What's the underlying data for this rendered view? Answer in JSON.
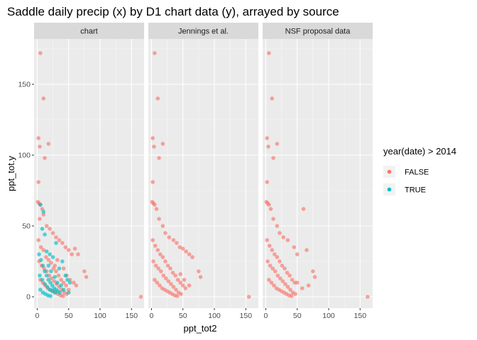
{
  "chart_data": {
    "type": "scatter",
    "title": "Saddle daily precip (x) by D1 chart data (y), arrayed by source",
    "xlabel": "ppt_tot2",
    "ylabel": "ppt_tot.y",
    "xlim": [
      -5,
      170
    ],
    "ylim": [
      -8,
      182
    ],
    "x_ticks": [
      0,
      50,
      100,
      150
    ],
    "y_ticks": [
      0,
      50,
      100,
      150
    ],
    "grid": true,
    "facets": [
      "chart",
      "Jennings et al.",
      "NSF proposal data"
    ],
    "legend": {
      "title": "year(date) > 2014",
      "position": "right",
      "entries": [
        {
          "label": "FALSE",
          "color": "#F8766D"
        },
        {
          "label": "TRUE",
          "color": "#00BFC4"
        }
      ]
    },
    "series": [
      {
        "name": "FALSE",
        "color": "#F8766D",
        "panels": [
          [
            [
              5,
              172
            ],
            [
              10,
              140
            ],
            [
              2,
              112
            ],
            [
              4,
              106
            ],
            [
              12,
              98
            ],
            [
              18,
              108
            ],
            [
              2,
              81
            ],
            [
              1,
              67
            ],
            [
              3,
              66
            ],
            [
              5,
              65
            ],
            [
              8,
              62
            ],
            [
              10,
              58
            ],
            [
              4,
              55
            ],
            [
              15,
              50
            ],
            [
              20,
              48
            ],
            [
              25,
              45
            ],
            [
              30,
              42
            ],
            [
              35,
              40
            ],
            [
              40,
              38
            ],
            [
              45,
              35
            ],
            [
              50,
              33
            ],
            [
              55,
              30
            ],
            [
              60,
              34
            ],
            [
              65,
              30
            ],
            [
              75,
              18
            ],
            [
              78,
              14
            ],
            [
              28,
              22
            ],
            [
              32,
              26
            ],
            [
              42,
              20
            ],
            [
              47,
              15
            ],
            [
              52,
              12
            ],
            [
              58,
              10
            ],
            [
              62,
              8
            ],
            [
              165,
              0
            ],
            [
              2,
              40
            ],
            [
              6,
              35
            ],
            [
              10,
              33
            ],
            [
              14,
              28
            ],
            [
              18,
              26
            ],
            [
              22,
              24
            ],
            [
              26,
              20
            ],
            [
              30,
              18
            ],
            [
              34,
              15
            ],
            [
              38,
              12
            ],
            [
              42,
              10
            ],
            [
              46,
              8
            ],
            [
              50,
              5
            ],
            [
              3,
              25
            ],
            [
              7,
              22
            ],
            [
              11,
              20
            ],
            [
              15,
              18
            ],
            [
              19,
              15
            ],
            [
              23,
              13
            ],
            [
              27,
              11
            ],
            [
              31,
              9
            ],
            [
              35,
              7
            ],
            [
              39,
              5
            ],
            [
              43,
              3
            ],
            [
              47,
              2
            ],
            [
              5,
              12
            ],
            [
              9,
              10
            ],
            [
              13,
              8
            ],
            [
              17,
              6
            ],
            [
              21,
              5
            ],
            [
              25,
              4
            ],
            [
              29,
              3
            ],
            [
              33,
              2
            ],
            [
              37,
              1
            ],
            [
              41,
              0.5
            ]
          ],
          [
            [
              5,
              172
            ],
            [
              10,
              140
            ],
            [
              2,
              112
            ],
            [
              4,
              106
            ],
            [
              12,
              98
            ],
            [
              18,
              108
            ],
            [
              2,
              81
            ],
            [
              1,
              67
            ],
            [
              3,
              66
            ],
            [
              5,
              65
            ],
            [
              8,
              62
            ],
            [
              12,
              55
            ],
            [
              18,
              50
            ],
            [
              22,
              45
            ],
            [
              28,
              42
            ],
            [
              35,
              40
            ],
            [
              40,
              38
            ],
            [
              45,
              35
            ],
            [
              50,
              34
            ],
            [
              55,
              32
            ],
            [
              60,
              30
            ],
            [
              65,
              28
            ],
            [
              75,
              18
            ],
            [
              78,
              14
            ],
            [
              60,
              8
            ],
            [
              52,
              12
            ],
            [
              46,
              16
            ],
            [
              155,
              0
            ],
            [
              2,
              40
            ],
            [
              6,
              36
            ],
            [
              10,
              33
            ],
            [
              14,
              30
            ],
            [
              18,
              28
            ],
            [
              22,
              25
            ],
            [
              26,
              22
            ],
            [
              30,
              20
            ],
            [
              34,
              17
            ],
            [
              38,
              15
            ],
            [
              42,
              12
            ],
            [
              46,
              10
            ],
            [
              50,
              8
            ],
            [
              54,
              6
            ],
            [
              3,
              25
            ],
            [
              7,
              22
            ],
            [
              11,
              20
            ],
            [
              15,
              18
            ],
            [
              19,
              15
            ],
            [
              23,
              13
            ],
            [
              27,
              11
            ],
            [
              31,
              9
            ],
            [
              35,
              7
            ],
            [
              39,
              5
            ],
            [
              43,
              3
            ],
            [
              47,
              2
            ],
            [
              5,
              12
            ],
            [
              9,
              10
            ],
            [
              13,
              8
            ],
            [
              17,
              6
            ],
            [
              21,
              5
            ],
            [
              25,
              4
            ],
            [
              29,
              3
            ],
            [
              33,
              2
            ],
            [
              37,
              1
            ],
            [
              41,
              0.5
            ]
          ],
          [
            [
              5,
              172
            ],
            [
              10,
              140
            ],
            [
              2,
              112
            ],
            [
              4,
              106
            ],
            [
              12,
              98
            ],
            [
              18,
              108
            ],
            [
              2,
              81
            ],
            [
              1,
              67
            ],
            [
              3,
              66
            ],
            [
              5,
              65
            ],
            [
              8,
              62
            ],
            [
              12,
              55
            ],
            [
              18,
              50
            ],
            [
              22,
              45
            ],
            [
              28,
              42
            ],
            [
              35,
              40
            ],
            [
              45,
              35
            ],
            [
              50,
              30
            ],
            [
              60,
              62
            ],
            [
              65,
              33
            ],
            [
              75,
              18
            ],
            [
              78,
              14
            ],
            [
              68,
              8
            ],
            [
              58,
              6
            ],
            [
              50,
              10
            ],
            [
              162,
              0
            ],
            [
              2,
              40
            ],
            [
              6,
              36
            ],
            [
              10,
              33
            ],
            [
              14,
              30
            ],
            [
              18,
              28
            ],
            [
              22,
              25
            ],
            [
              26,
              22
            ],
            [
              30,
              20
            ],
            [
              34,
              17
            ],
            [
              38,
              15
            ],
            [
              42,
              12
            ],
            [
              46,
              10
            ],
            [
              3,
              25
            ],
            [
              7,
              22
            ],
            [
              11,
              20
            ],
            [
              15,
              18
            ],
            [
              19,
              15
            ],
            [
              23,
              13
            ],
            [
              27,
              11
            ],
            [
              31,
              9
            ],
            [
              35,
              7
            ],
            [
              39,
              5
            ],
            [
              43,
              3
            ],
            [
              47,
              2
            ],
            [
              5,
              12
            ],
            [
              9,
              10
            ],
            [
              13,
              8
            ],
            [
              17,
              6
            ],
            [
              21,
              5
            ],
            [
              25,
              4
            ],
            [
              29,
              3
            ],
            [
              33,
              2
            ],
            [
              37,
              1
            ],
            [
              41,
              0.5
            ]
          ]
        ]
      },
      {
        "name": "TRUE",
        "color": "#00BFC4",
        "panels": [
          [
            [
              10,
              60
            ],
            [
              5,
              65
            ],
            [
              8,
              48
            ],
            [
              30,
              38
            ],
            [
              12,
              44
            ],
            [
              40,
              25
            ],
            [
              45,
              15
            ],
            [
              48,
              12
            ],
            [
              52,
              10
            ],
            [
              35,
              20
            ],
            [
              25,
              28
            ],
            [
              20,
              30
            ],
            [
              15,
              32
            ],
            [
              18,
              22
            ],
            [
              22,
              18
            ],
            [
              28,
              14
            ],
            [
              32,
              10
            ],
            [
              38,
              8
            ],
            [
              42,
              5
            ],
            [
              50,
              3
            ],
            [
              3,
              30
            ],
            [
              6,
              26
            ],
            [
              9,
              22
            ],
            [
              12,
              18
            ],
            [
              15,
              15
            ],
            [
              18,
              12
            ],
            [
              21,
              10
            ],
            [
              24,
              8
            ],
            [
              27,
              6
            ],
            [
              30,
              5
            ],
            [
              33,
              4
            ],
            [
              36,
              3
            ],
            [
              4,
              15
            ],
            [
              8,
              12
            ],
            [
              12,
              9
            ],
            [
              16,
              7
            ],
            [
              20,
              5
            ],
            [
              24,
              4
            ],
            [
              28,
              3
            ],
            [
              5,
              5
            ],
            [
              9,
              3
            ],
            [
              13,
              2
            ],
            [
              17,
              1
            ],
            [
              21,
              0.5
            ]
          ],
          [],
          []
        ]
      }
    ]
  }
}
